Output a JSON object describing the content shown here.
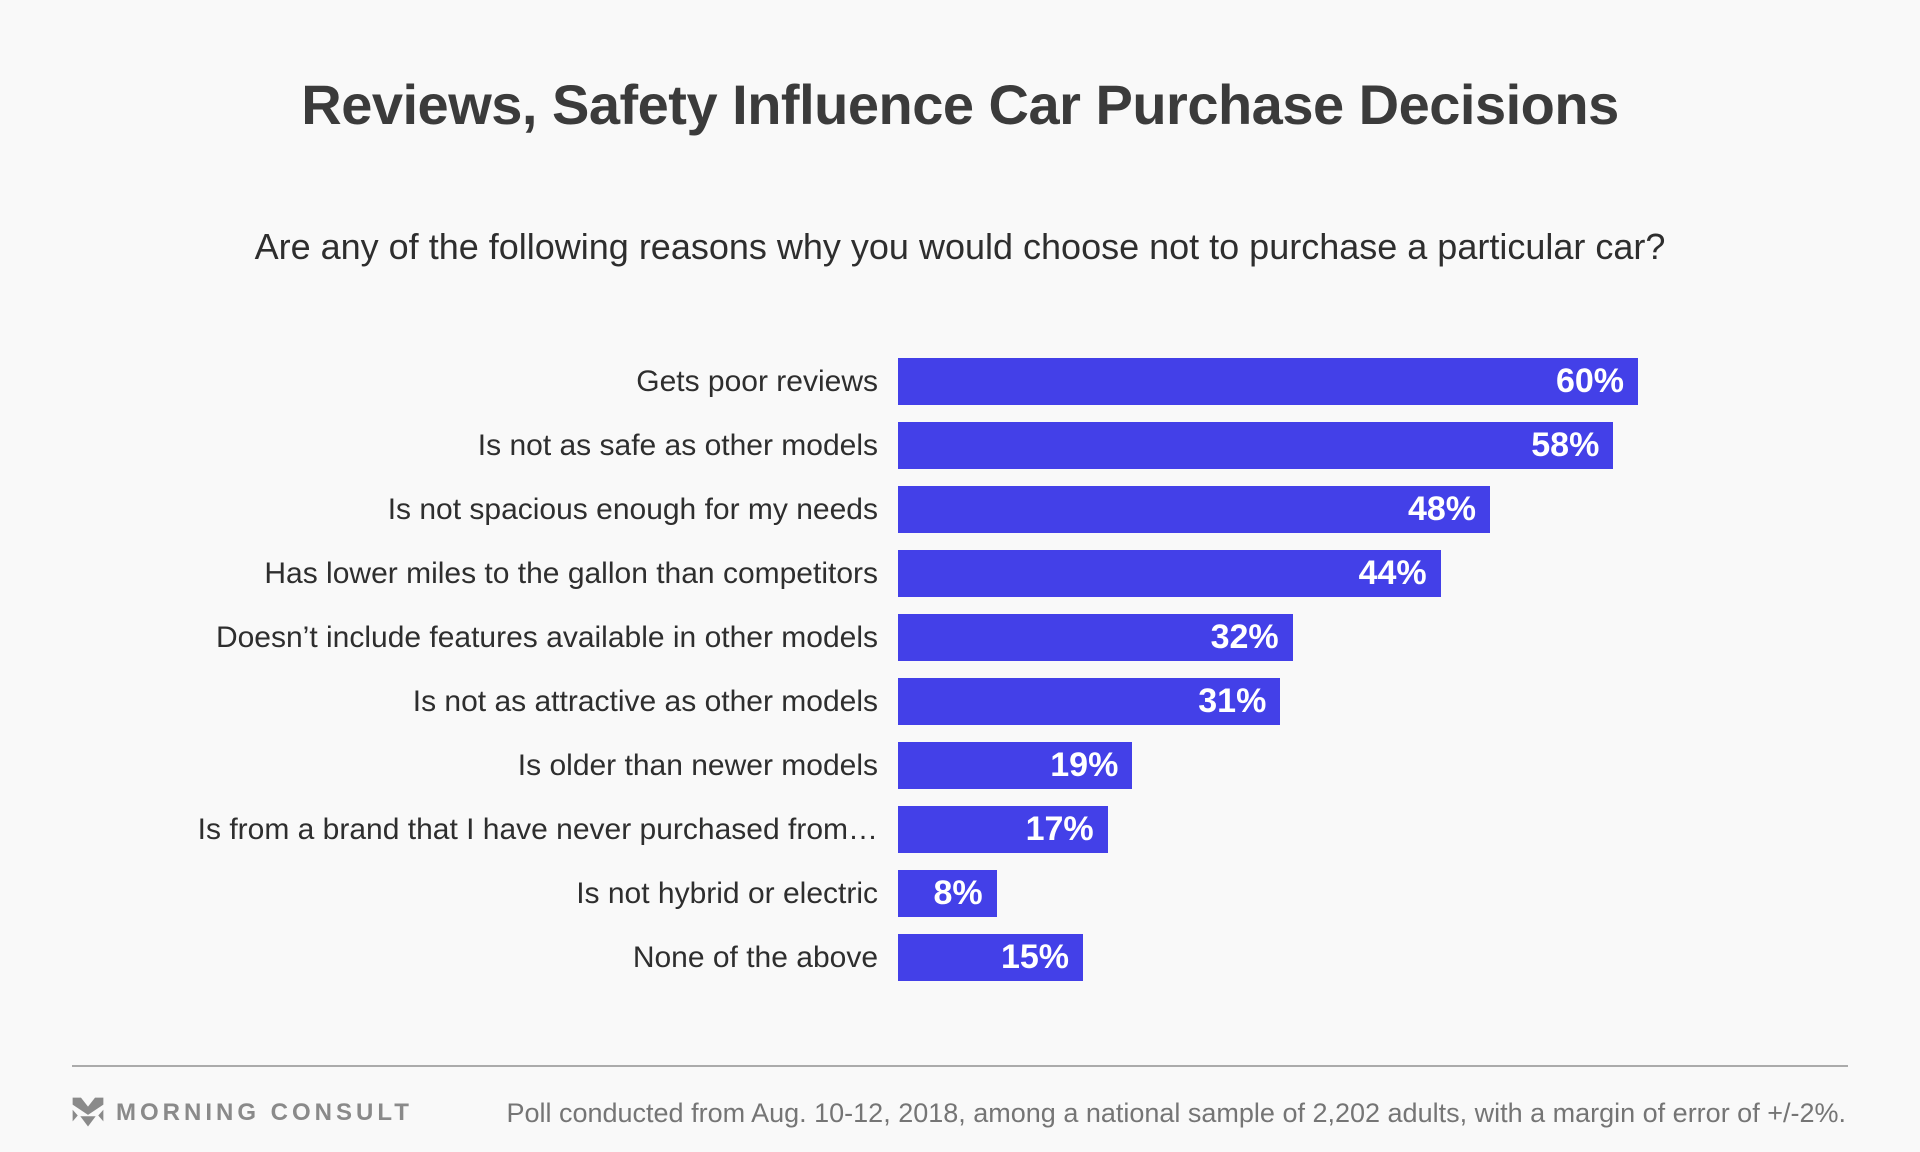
{
  "title": "Reviews, Safety Influence Car Purchase Decisions",
  "subtitle": "Are any of the following reasons why you would choose not to purchase a particular car?",
  "chart_data": {
    "type": "bar",
    "orientation": "horizontal",
    "title": "Reviews, Safety Influence Car Purchase Decisions",
    "subtitle": "Are any of the following reasons why you would choose not to purchase a particular car?",
    "categories": [
      "Gets poor reviews",
      "Is not as safe as other models",
      "Is not spacious enough for my needs",
      "Has lower miles to the gallon than competitors",
      "Doesn’t include features available in other models",
      "Is not as attractive as other models",
      "Is older than newer models",
      "Is from a brand that I have never purchased from…",
      "Is not hybrid or electric",
      "None of the above"
    ],
    "values": [
      60,
      58,
      48,
      44,
      32,
      31,
      19,
      17,
      8,
      15
    ],
    "value_labels": [
      "60%",
      "58%",
      "48%",
      "44%",
      "32%",
      "31%",
      "19%",
      "17%",
      "8%",
      "15%"
    ],
    "xlim": [
      0,
      60
    ],
    "unit": "%",
    "grid": false,
    "legend": false,
    "value_label_position": "inside-end",
    "bar_color": "#4340e8",
    "value_text_color": "#ffffff"
  },
  "footer": {
    "brand": "MORNING CONSULT",
    "note": "Poll conducted from Aug. 10-12, 2018, among a national sample of 2,202 adults, with a margin of error of +/-2%."
  },
  "icons": {
    "brand_mark": "morning-consult-m-logo"
  },
  "colors": {
    "background": "#f9f9f9",
    "bar": "#4340e8",
    "title_text": "#3b3b3b",
    "body_text": "#2e2e2e",
    "footer_text": "#757575",
    "brand_gray": "#8a8a8a",
    "divider": "#ababab"
  }
}
